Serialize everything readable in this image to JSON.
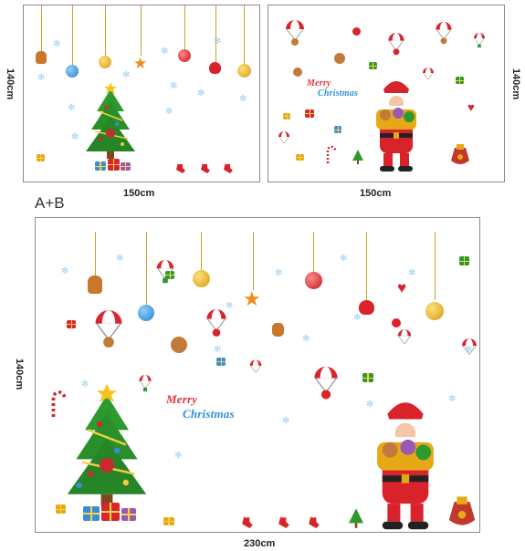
{
  "panels": {
    "a": {
      "width_label": "150cm",
      "height_label": "140cm"
    },
    "b": {
      "width_label": "150cm",
      "height_label": "140cm"
    },
    "combined": {
      "title": "A+B",
      "width_label": "230cm",
      "height_label": "140cm"
    }
  },
  "greeting": {
    "line1": "Merry",
    "line2": "Christmas"
  },
  "colors": {
    "tree_green": "#2e9a2e",
    "tree_dark": "#1d6e1d",
    "santa_red": "#d8232a",
    "gold": "#e6a817",
    "star_orange": "#f08a1d",
    "snow_blue": "#9fd3ef",
    "ornament_blue": "#3a8fd4",
    "ornament_red": "#d8262f"
  },
  "icons": {
    "tree": "christmas-tree-icon",
    "santa": "santa-claus-icon",
    "snowflake": "snowflake-icon",
    "ornament": "bauble-icon",
    "star": "star-icon",
    "gift": "gift-icon",
    "parachute": "parachute-reindeer-icon",
    "stocking": "stocking-icon",
    "candy_cane": "candy-cane-icon",
    "heart": "heart-icon",
    "gingerbread": "gingerbread-man-icon",
    "sack": "gift-sack-icon"
  }
}
